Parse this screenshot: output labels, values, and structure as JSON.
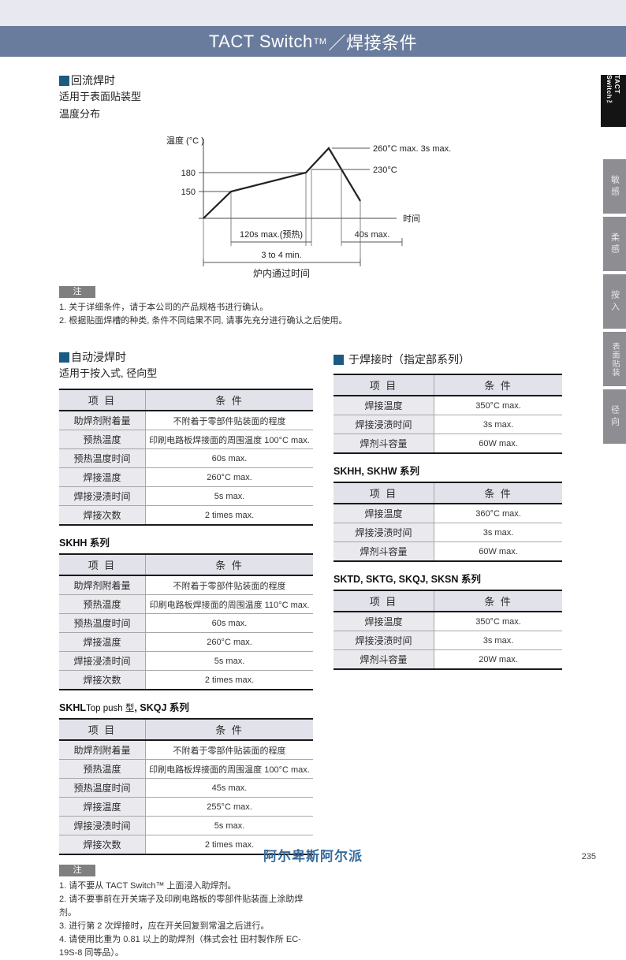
{
  "header": {
    "title_main": "TACT Switch",
    "title_tm": "TM",
    "title_suffix": "／焊接条件"
  },
  "sidebar": {
    "top_tab": "TACT Switch™",
    "category_tabs": [
      "敏感",
      "柔感",
      "按入",
      "表面贴装",
      "径向"
    ]
  },
  "reflow": {
    "heading": "回流焊时",
    "subtitle1": "适用于表面贴装型",
    "subtitle2": "温度分布",
    "figure": {
      "y_label": "温度 (°C )",
      "tick_180": "180",
      "tick_150": "150",
      "x_label": "时间",
      "peak_annotation": "260°C max. 3s max.",
      "ref_annotation": "230°C",
      "preheat_span": "120s max.(预热)",
      "over_span": "40s max.",
      "total_span": "3 to 4 min.",
      "caption": "炉内通过时间"
    },
    "note_tag": "注",
    "notes": [
      "1. 关于详细条件，请于本公司的产品规格书进行确认。",
      "2. 根据贴面焊槽的种类, 条件不同结果不同, 请事先充分进行确认之后使用。"
    ]
  },
  "table_labels": {
    "col_item": "项 目",
    "col_cond": "条 件"
  },
  "dip": {
    "heading": "自动浸焊时",
    "subtitle": "适用于按入式, 径向型",
    "tables": [
      {
        "rows": [
          {
            "item": "助焊剂附着量",
            "cond": "不附着于零部件贴装面的程度"
          },
          {
            "item": "预热温度",
            "cond": "印刷电路板焊接面的周围温度 100°C max."
          },
          {
            "item": "预热温度时间",
            "cond": "60s max."
          },
          {
            "item": "焊接温度",
            "cond": "260°C max."
          },
          {
            "item": "焊接浸渍时间",
            "cond": "5s max."
          },
          {
            "item": "焊接次数",
            "cond": "2 times max."
          }
        ]
      },
      {
        "title": "SKHH 系列",
        "rows": [
          {
            "item": "助焊剂附着量",
            "cond": "不附着于零部件贴装面的程度"
          },
          {
            "item": "预热温度",
            "cond": "印刷电路板焊接面的周围温度 110°C max."
          },
          {
            "item": "预热温度时间",
            "cond": "60s max."
          },
          {
            "item": "焊接温度",
            "cond": "260°C max."
          },
          {
            "item": "焊接浸渍时间",
            "cond": "5s max."
          },
          {
            "item": "焊接次数",
            "cond": "2 times max."
          }
        ]
      },
      {
        "title_bold1": "SKHL",
        "title_regular": "Top push 型",
        "title_bold2": ", SKQJ 系列",
        "rows": [
          {
            "item": "助焊剂附着量",
            "cond": "不附着于零部件贴装面的程度"
          },
          {
            "item": "预热温度",
            "cond": "印刷电路板焊接面的周围温度 100°C max."
          },
          {
            "item": "预热温度时间",
            "cond": "45s max."
          },
          {
            "item": "焊接温度",
            "cond": "255°C max."
          },
          {
            "item": "焊接浸渍时间",
            "cond": "5s max."
          },
          {
            "item": "焊接次数",
            "cond": "2 times max."
          }
        ]
      }
    ],
    "note_tag": "注",
    "notes": [
      "1. 请不要从 TACT Switch™ 上面浸入助焊剂。",
      "2. 请不要事前在开关端子及印刷电路板的零部件贴装面上涂助焊剂。",
      "3. 进行第 2 次焊接时，应在开关回复到常温之后进行。",
      "4. 请使用比重为 0.81 以上的助焊剂（株式会社 田村製作所 EC-19S-8 同等品）。"
    ]
  },
  "hand": {
    "heading": "于焊接时（指定部系列）",
    "tables": [
      {
        "rows": [
          {
            "item": "焊接温度",
            "cond": "350°C max."
          },
          {
            "item": "焊接浸渍时间",
            "cond": "3s max."
          },
          {
            "item": "焊剂斗容量",
            "cond": "60W max."
          }
        ]
      },
      {
        "title": "SKHH, SKHW 系列",
        "rows": [
          {
            "item": "焊接温度",
            "cond": "360°C max."
          },
          {
            "item": "焊接浸渍时间",
            "cond": "3s max."
          },
          {
            "item": "焊剂斗容量",
            "cond": "60W max."
          }
        ]
      },
      {
        "title": "SKTD, SKTG, SKQJ, SKSN 系列",
        "rows": [
          {
            "item": "焊接温度",
            "cond": "350°C max."
          },
          {
            "item": "焊接浸渍时间",
            "cond": "3s max."
          },
          {
            "item": "焊剂斗容量",
            "cond": "20W max."
          }
        ]
      }
    ]
  },
  "footer": {
    "brand": "阿尔卑斯阿尔派",
    "page": "235"
  }
}
